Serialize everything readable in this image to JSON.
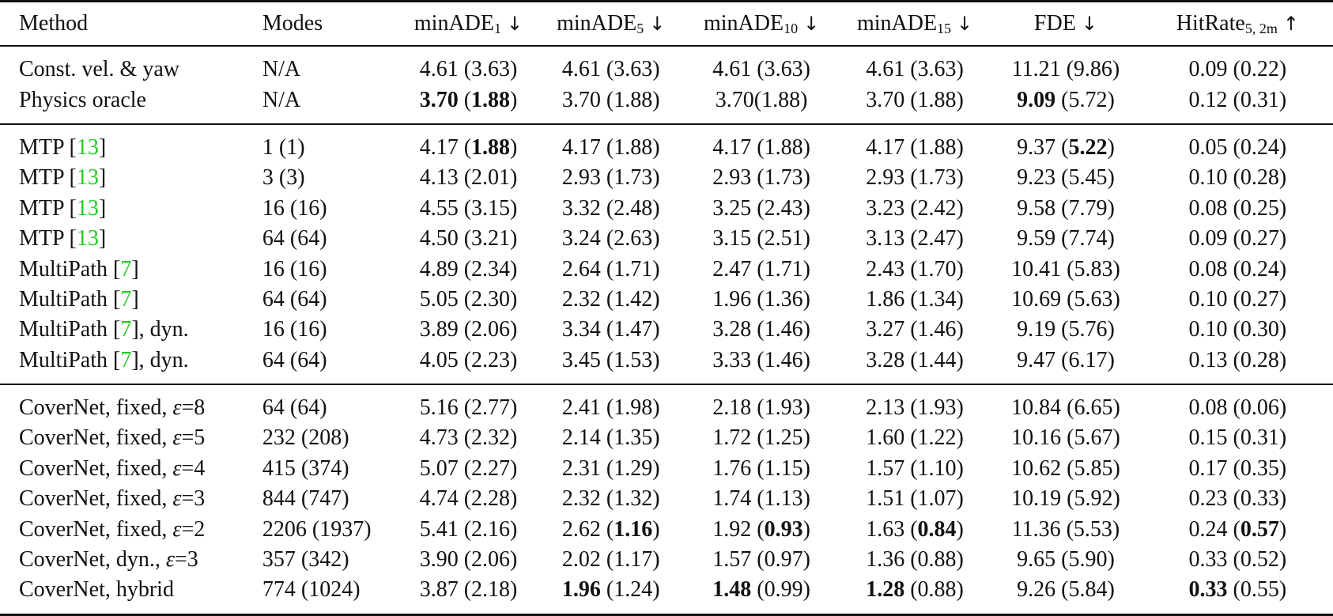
{
  "table": {
    "columns": [
      {
        "label": "Method",
        "sub": "",
        "arrow": ""
      },
      {
        "label": "Modes",
        "sub": "",
        "arrow": ""
      },
      {
        "label": "minADE",
        "sub": "1",
        "arrow": "↓"
      },
      {
        "label": "minADE",
        "sub": "5",
        "arrow": "↓"
      },
      {
        "label": "minADE",
        "sub": "10",
        "arrow": "↓"
      },
      {
        "label": "minADE",
        "sub": "15",
        "arrow": "↓"
      },
      {
        "label": "FDE",
        "sub": "",
        "arrow": "↓"
      },
      {
        "label": "HitRate",
        "sub": "5, 2m",
        "arrow": "↑"
      }
    ],
    "groups": [
      {
        "rows": [
          {
            "method": "Const. vel. & yaw",
            "cite": "",
            "suffix": "",
            "modes": "N/A",
            "cells": [
              [
                "4.61",
                "(3.63)",
                false,
                false
              ],
              [
                "4.61",
                "(3.63)",
                false,
                false
              ],
              [
                "4.61",
                "(3.63)",
                false,
                false
              ],
              [
                "4.61",
                "(3.63)",
                false,
                false
              ],
              [
                "11.21",
                "(9.86)",
                false,
                false
              ],
              [
                "0.09",
                "(0.22)",
                false,
                false
              ]
            ]
          },
          {
            "method": "Physics oracle",
            "cite": "",
            "suffix": "",
            "modes": "N/A",
            "cells": [
              [
                "3.70",
                "(1.88)",
                true,
                true
              ],
              [
                "3.70",
                "(1.88)",
                false,
                false
              ],
              [
                "3.70",
                "(1.88)",
                false,
                false,
                "nospace"
              ],
              [
                "3.70",
                "(1.88)",
                false,
                false
              ],
              [
                "9.09",
                "(5.72)",
                true,
                false
              ],
              [
                "0.12",
                "(0.31)",
                false,
                false
              ]
            ]
          }
        ]
      },
      {
        "rows": [
          {
            "method": "MTP",
            "cite": "13",
            "suffix": "",
            "modes": "1 (1)",
            "cells": [
              [
                "4.17",
                "(1.88)",
                false,
                true
              ],
              [
                "4.17",
                "(1.88)",
                false,
                false
              ],
              [
                "4.17",
                "(1.88)",
                false,
                false
              ],
              [
                "4.17",
                "(1.88)",
                false,
                false
              ],
              [
                "9.37",
                "(5.22)",
                false,
                true
              ],
              [
                "0.05",
                "(0.24)",
                false,
                false
              ]
            ]
          },
          {
            "method": "MTP",
            "cite": "13",
            "suffix": "",
            "modes": "3 (3)",
            "cells": [
              [
                "4.13",
                "(2.01)",
                false,
                false
              ],
              [
                "2.93",
                "(1.73)",
                false,
                false
              ],
              [
                "2.93",
                "(1.73)",
                false,
                false
              ],
              [
                "2.93",
                "(1.73)",
                false,
                false
              ],
              [
                "9.23",
                "(5.45)",
                false,
                false
              ],
              [
                "0.10",
                "(0.28)",
                false,
                false
              ]
            ]
          },
          {
            "method": "MTP",
            "cite": "13",
            "suffix": "",
            "modes": "16 (16)",
            "cells": [
              [
                "4.55",
                "(3.15)",
                false,
                false
              ],
              [
                "3.32",
                "(2.48)",
                false,
                false
              ],
              [
                "3.25",
                "(2.43)",
                false,
                false
              ],
              [
                "3.23",
                "(2.42)",
                false,
                false
              ],
              [
                "9.58",
                "(7.79)",
                false,
                false
              ],
              [
                "0.08",
                "(0.25)",
                false,
                false
              ]
            ]
          },
          {
            "method": "MTP",
            "cite": "13",
            "suffix": "",
            "modes": "64 (64)",
            "cells": [
              [
                "4.50",
                "(3.21)",
                false,
                false
              ],
              [
                "3.24",
                "(2.63)",
                false,
                false
              ],
              [
                "3.15",
                "(2.51)",
                false,
                false
              ],
              [
                "3.13",
                "(2.47)",
                false,
                false
              ],
              [
                "9.59",
                "(7.74)",
                false,
                false
              ],
              [
                "0.09",
                "(0.27)",
                false,
                false
              ]
            ]
          },
          {
            "method": "MultiPath",
            "cite": "7",
            "suffix": "",
            "modes": "16 (16)",
            "cells": [
              [
                "4.89",
                "(2.34)",
                false,
                false
              ],
              [
                "2.64",
                "(1.71)",
                false,
                false
              ],
              [
                "2.47",
                "(1.71)",
                false,
                false
              ],
              [
                "2.43",
                "(1.70)",
                false,
                false
              ],
              [
                "10.41",
                "(5.83)",
                false,
                false
              ],
              [
                "0.08",
                "(0.24)",
                false,
                false
              ]
            ]
          },
          {
            "method": "MultiPath",
            "cite": "7",
            "suffix": "",
            "modes": "64 (64)",
            "cells": [
              [
                "5.05",
                "(2.30)",
                false,
                false
              ],
              [
                "2.32",
                "(1.42)",
                false,
                false
              ],
              [
                "1.96",
                "(1.36)",
                false,
                false
              ],
              [
                "1.86",
                "(1.34)",
                false,
                false
              ],
              [
                "10.69",
                "(5.63)",
                false,
                false
              ],
              [
                "0.10",
                "(0.27)",
                false,
                false
              ]
            ]
          },
          {
            "method": "MultiPath",
            "cite": "7",
            "suffix": ", dyn.",
            "modes": "16 (16)",
            "cells": [
              [
                "3.89",
                "(2.06)",
                false,
                false
              ],
              [
                "3.34",
                "(1.47)",
                false,
                false
              ],
              [
                "3.28",
                "(1.46)",
                false,
                false
              ],
              [
                "3.27",
                "(1.46)",
                false,
                false
              ],
              [
                "9.19",
                "(5.76)",
                false,
                false
              ],
              [
                "0.10",
                "(0.30)",
                false,
                false
              ]
            ]
          },
          {
            "method": "MultiPath",
            "cite": "7",
            "suffix": ", dyn.",
            "modes": "64 (64)",
            "cells": [
              [
                "4.05",
                "(2.23)",
                false,
                false
              ],
              [
                "3.45",
                "(1.53)",
                false,
                false
              ],
              [
                "3.33",
                "(1.46)",
                false,
                false
              ],
              [
                "3.28",
                "(1.44)",
                false,
                false
              ],
              [
                "9.47",
                "(6.17)",
                false,
                false
              ],
              [
                "0.13",
                "(0.28)",
                false,
                false
              ]
            ]
          }
        ]
      },
      {
        "rows": [
          {
            "method": "CoverNet, fixed, ",
            "eps": "ε",
            "epsval": "=8",
            "cite": "",
            "suffix": "",
            "modes": "64 (64)",
            "cells": [
              [
                "5.16",
                "(2.77)",
                false,
                false
              ],
              [
                "2.41",
                "(1.98)",
                false,
                false
              ],
              [
                "2.18",
                "(1.93)",
                false,
                false
              ],
              [
                "2.13",
                "(1.93)",
                false,
                false
              ],
              [
                "10.84",
                "(6.65)",
                false,
                false
              ],
              [
                "0.08",
                "(0.06)",
                false,
                false
              ]
            ]
          },
          {
            "method": "CoverNet, fixed, ",
            "eps": "ε",
            "epsval": "=5",
            "cite": "",
            "suffix": "",
            "modes": "232 (208)",
            "cells": [
              [
                "4.73",
                "(2.32)",
                false,
                false
              ],
              [
                "2.14",
                "(1.35)",
                false,
                false
              ],
              [
                "1.72",
                "(1.25)",
                false,
                false
              ],
              [
                "1.60",
                "(1.22)",
                false,
                false
              ],
              [
                "10.16",
                "(5.67)",
                false,
                false
              ],
              [
                "0.15",
                "(0.31)",
                false,
                false
              ]
            ]
          },
          {
            "method": "CoverNet, fixed, ",
            "eps": "ε",
            "epsval": "=4",
            "cite": "",
            "suffix": "",
            "modes": "415 (374)",
            "cells": [
              [
                "5.07",
                "(2.27)",
                false,
                false
              ],
              [
                "2.31",
                "(1.29)",
                false,
                false
              ],
              [
                "1.76",
                "(1.15)",
                false,
                false
              ],
              [
                "1.57",
                "(1.10)",
                false,
                false
              ],
              [
                "10.62",
                "(5.85)",
                false,
                false
              ],
              [
                "0.17",
                "(0.35)",
                false,
                false
              ]
            ]
          },
          {
            "method": "CoverNet, fixed, ",
            "eps": "ε",
            "epsval": "=3",
            "cite": "",
            "suffix": "",
            "modes": "844 (747)",
            "cells": [
              [
                "4.74",
                "(2.28)",
                false,
                false
              ],
              [
                "2.32",
                "(1.32)",
                false,
                false
              ],
              [
                "1.74",
                "(1.13)",
                false,
                false
              ],
              [
                "1.51",
                "(1.07)",
                false,
                false
              ],
              [
                "10.19",
                "(5.92)",
                false,
                false
              ],
              [
                "0.23",
                "(0.33)",
                false,
                false
              ]
            ]
          },
          {
            "method": "CoverNet, fixed, ",
            "eps": "ε",
            "epsval": "=2",
            "cite": "",
            "suffix": "",
            "modes": "2206 (1937)",
            "cells": [
              [
                "5.41",
                "(2.16)",
                false,
                false
              ],
              [
                "2.62",
                "(1.16)",
                false,
                true
              ],
              [
                "1.92",
                "(0.93)",
                false,
                true
              ],
              [
                "1.63",
                "(0.84)",
                false,
                true
              ],
              [
                "11.36",
                "(5.53)",
                false,
                false
              ],
              [
                "0.24",
                "(0.57)",
                false,
                true
              ]
            ]
          },
          {
            "method": "CoverNet, dyn., ",
            "eps": "ε",
            "epsval": "=3",
            "cite": "",
            "suffix": "",
            "modes": "357 (342)",
            "cells": [
              [
                "3.90",
                "(2.06)",
                false,
                false
              ],
              [
                "2.02",
                "(1.17)",
                false,
                false
              ],
              [
                "1.57",
                "(0.97)",
                false,
                false
              ],
              [
                "1.36",
                "(0.88)",
                false,
                false
              ],
              [
                "9.65",
                "(5.90)",
                false,
                false
              ],
              [
                "0.33",
                "(0.52)",
                false,
                false
              ]
            ]
          },
          {
            "method": "CoverNet, hybrid",
            "cite": "",
            "suffix": "",
            "modes": "774 (1024)",
            "cells": [
              [
                "3.87",
                "(2.18)",
                false,
                false
              ],
              [
                "1.96",
                "(1.24)",
                true,
                false
              ],
              [
                "1.48",
                "(0.99)",
                true,
                false
              ],
              [
                "1.28",
                "(0.88)",
                true,
                false
              ],
              [
                "9.26",
                "(5.84)",
                false,
                false
              ],
              [
                "0.33",
                "(0.55)",
                true,
                false
              ]
            ]
          }
        ]
      }
    ]
  },
  "colors": {
    "citation": "#22cc22",
    "text": "#111111",
    "rule": "#111111"
  }
}
